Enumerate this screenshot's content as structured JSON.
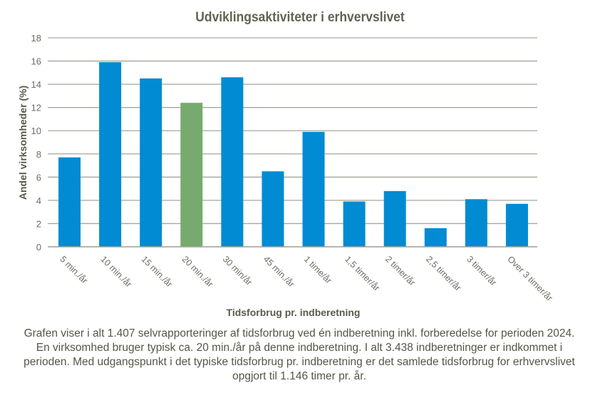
{
  "chart_data": {
    "type": "bar",
    "title": "Udviklingsaktiviteter  i erhvervslivet",
    "xlabel": "Tidsforbrug pr. indberetning",
    "ylabel": "Andel virksomheder  (%)",
    "ylim": [
      0,
      18
    ],
    "yticks": [
      0,
      2,
      4,
      6,
      8,
      10,
      12,
      14,
      16,
      18
    ],
    "grid": true,
    "categories": [
      "5 min./år",
      "10 min./år",
      "15 min./år",
      "20 min./år",
      "30 min/år",
      "45 min./år",
      "1 time/år",
      "1,5 timer/år",
      "2 timer/år",
      "2,5 timer/år",
      "3 timer/år",
      "Over 3 timer/år"
    ],
    "values": [
      7.7,
      15.9,
      14.5,
      12.4,
      14.6,
      6.5,
      9.9,
      3.9,
      4.8,
      1.6,
      4.1,
      3.7
    ],
    "highlight_index": 3,
    "colors": {
      "bar": "#008bd2",
      "highlight": "#77aa6e",
      "grid": "#a6a69c",
      "text": "#5a5a4a"
    }
  },
  "caption": "Grafen viser i alt 1.407 selvrapporteringer  af tidsforbrug  ved én indberetning inkl. forberedelse for perioden 2024. En virksomhed bruger typisk ca. 20 min./år på denne indberetning. I alt 3.438 indberetninger er indkommet i perioden. Med udgangspunkt i det typiske tidsforbrug  pr. indberetning er det samlede tidsforbrug for erhvervslivet  opgjort til 1.146 timer pr. år."
}
